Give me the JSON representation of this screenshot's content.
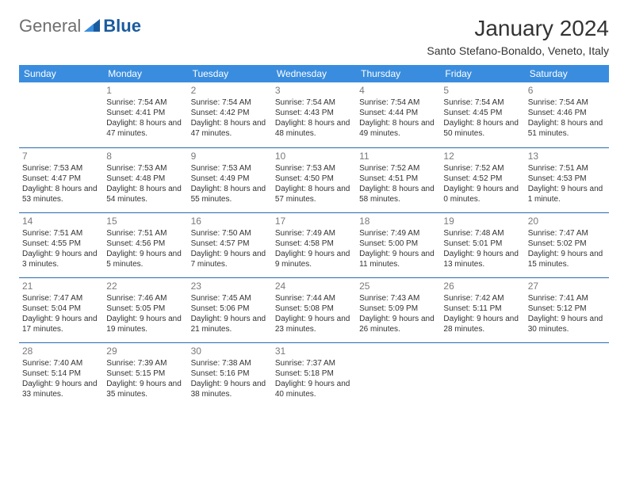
{
  "brand": {
    "part1": "General",
    "part2": "Blue"
  },
  "title": "January 2024",
  "location": "Santo Stefano-Bonaldo, Veneto, Italy",
  "colors": {
    "header_bg": "#3a8dde",
    "header_text": "#ffffff",
    "row_border": "#2a6bb0",
    "daynum": "#7a7a7a",
    "body_text": "#333333",
    "brand_gray": "#6f6f6f",
    "brand_blue": "#1a5b9e",
    "page_bg": "#ffffff"
  },
  "weekdays": [
    "Sunday",
    "Monday",
    "Tuesday",
    "Wednesday",
    "Thursday",
    "Friday",
    "Saturday"
  ],
  "weeks": [
    [
      {
        "day": "",
        "sunrise": "",
        "sunset": "",
        "daylight": ""
      },
      {
        "day": "1",
        "sunrise": "Sunrise: 7:54 AM",
        "sunset": "Sunset: 4:41 PM",
        "daylight": "Daylight: 8 hours and 47 minutes."
      },
      {
        "day": "2",
        "sunrise": "Sunrise: 7:54 AM",
        "sunset": "Sunset: 4:42 PM",
        "daylight": "Daylight: 8 hours and 47 minutes."
      },
      {
        "day": "3",
        "sunrise": "Sunrise: 7:54 AM",
        "sunset": "Sunset: 4:43 PM",
        "daylight": "Daylight: 8 hours and 48 minutes."
      },
      {
        "day": "4",
        "sunrise": "Sunrise: 7:54 AM",
        "sunset": "Sunset: 4:44 PM",
        "daylight": "Daylight: 8 hours and 49 minutes."
      },
      {
        "day": "5",
        "sunrise": "Sunrise: 7:54 AM",
        "sunset": "Sunset: 4:45 PM",
        "daylight": "Daylight: 8 hours and 50 minutes."
      },
      {
        "day": "6",
        "sunrise": "Sunrise: 7:54 AM",
        "sunset": "Sunset: 4:46 PM",
        "daylight": "Daylight: 8 hours and 51 minutes."
      }
    ],
    [
      {
        "day": "7",
        "sunrise": "Sunrise: 7:53 AM",
        "sunset": "Sunset: 4:47 PM",
        "daylight": "Daylight: 8 hours and 53 minutes."
      },
      {
        "day": "8",
        "sunrise": "Sunrise: 7:53 AM",
        "sunset": "Sunset: 4:48 PM",
        "daylight": "Daylight: 8 hours and 54 minutes."
      },
      {
        "day": "9",
        "sunrise": "Sunrise: 7:53 AM",
        "sunset": "Sunset: 4:49 PM",
        "daylight": "Daylight: 8 hours and 55 minutes."
      },
      {
        "day": "10",
        "sunrise": "Sunrise: 7:53 AM",
        "sunset": "Sunset: 4:50 PM",
        "daylight": "Daylight: 8 hours and 57 minutes."
      },
      {
        "day": "11",
        "sunrise": "Sunrise: 7:52 AM",
        "sunset": "Sunset: 4:51 PM",
        "daylight": "Daylight: 8 hours and 58 minutes."
      },
      {
        "day": "12",
        "sunrise": "Sunrise: 7:52 AM",
        "sunset": "Sunset: 4:52 PM",
        "daylight": "Daylight: 9 hours and 0 minutes."
      },
      {
        "day": "13",
        "sunrise": "Sunrise: 7:51 AM",
        "sunset": "Sunset: 4:53 PM",
        "daylight": "Daylight: 9 hours and 1 minute."
      }
    ],
    [
      {
        "day": "14",
        "sunrise": "Sunrise: 7:51 AM",
        "sunset": "Sunset: 4:55 PM",
        "daylight": "Daylight: 9 hours and 3 minutes."
      },
      {
        "day": "15",
        "sunrise": "Sunrise: 7:51 AM",
        "sunset": "Sunset: 4:56 PM",
        "daylight": "Daylight: 9 hours and 5 minutes."
      },
      {
        "day": "16",
        "sunrise": "Sunrise: 7:50 AM",
        "sunset": "Sunset: 4:57 PM",
        "daylight": "Daylight: 9 hours and 7 minutes."
      },
      {
        "day": "17",
        "sunrise": "Sunrise: 7:49 AM",
        "sunset": "Sunset: 4:58 PM",
        "daylight": "Daylight: 9 hours and 9 minutes."
      },
      {
        "day": "18",
        "sunrise": "Sunrise: 7:49 AM",
        "sunset": "Sunset: 5:00 PM",
        "daylight": "Daylight: 9 hours and 11 minutes."
      },
      {
        "day": "19",
        "sunrise": "Sunrise: 7:48 AM",
        "sunset": "Sunset: 5:01 PM",
        "daylight": "Daylight: 9 hours and 13 minutes."
      },
      {
        "day": "20",
        "sunrise": "Sunrise: 7:47 AM",
        "sunset": "Sunset: 5:02 PM",
        "daylight": "Daylight: 9 hours and 15 minutes."
      }
    ],
    [
      {
        "day": "21",
        "sunrise": "Sunrise: 7:47 AM",
        "sunset": "Sunset: 5:04 PM",
        "daylight": "Daylight: 9 hours and 17 minutes."
      },
      {
        "day": "22",
        "sunrise": "Sunrise: 7:46 AM",
        "sunset": "Sunset: 5:05 PM",
        "daylight": "Daylight: 9 hours and 19 minutes."
      },
      {
        "day": "23",
        "sunrise": "Sunrise: 7:45 AM",
        "sunset": "Sunset: 5:06 PM",
        "daylight": "Daylight: 9 hours and 21 minutes."
      },
      {
        "day": "24",
        "sunrise": "Sunrise: 7:44 AM",
        "sunset": "Sunset: 5:08 PM",
        "daylight": "Daylight: 9 hours and 23 minutes."
      },
      {
        "day": "25",
        "sunrise": "Sunrise: 7:43 AM",
        "sunset": "Sunset: 5:09 PM",
        "daylight": "Daylight: 9 hours and 26 minutes."
      },
      {
        "day": "26",
        "sunrise": "Sunrise: 7:42 AM",
        "sunset": "Sunset: 5:11 PM",
        "daylight": "Daylight: 9 hours and 28 minutes."
      },
      {
        "day": "27",
        "sunrise": "Sunrise: 7:41 AM",
        "sunset": "Sunset: 5:12 PM",
        "daylight": "Daylight: 9 hours and 30 minutes."
      }
    ],
    [
      {
        "day": "28",
        "sunrise": "Sunrise: 7:40 AM",
        "sunset": "Sunset: 5:14 PM",
        "daylight": "Daylight: 9 hours and 33 minutes."
      },
      {
        "day": "29",
        "sunrise": "Sunrise: 7:39 AM",
        "sunset": "Sunset: 5:15 PM",
        "daylight": "Daylight: 9 hours and 35 minutes."
      },
      {
        "day": "30",
        "sunrise": "Sunrise: 7:38 AM",
        "sunset": "Sunset: 5:16 PM",
        "daylight": "Daylight: 9 hours and 38 minutes."
      },
      {
        "day": "31",
        "sunrise": "Sunrise: 7:37 AM",
        "sunset": "Sunset: 5:18 PM",
        "daylight": "Daylight: 9 hours and 40 minutes."
      },
      {
        "day": "",
        "sunrise": "",
        "sunset": "",
        "daylight": ""
      },
      {
        "day": "",
        "sunrise": "",
        "sunset": "",
        "daylight": ""
      },
      {
        "day": "",
        "sunrise": "",
        "sunset": "",
        "daylight": ""
      }
    ]
  ]
}
